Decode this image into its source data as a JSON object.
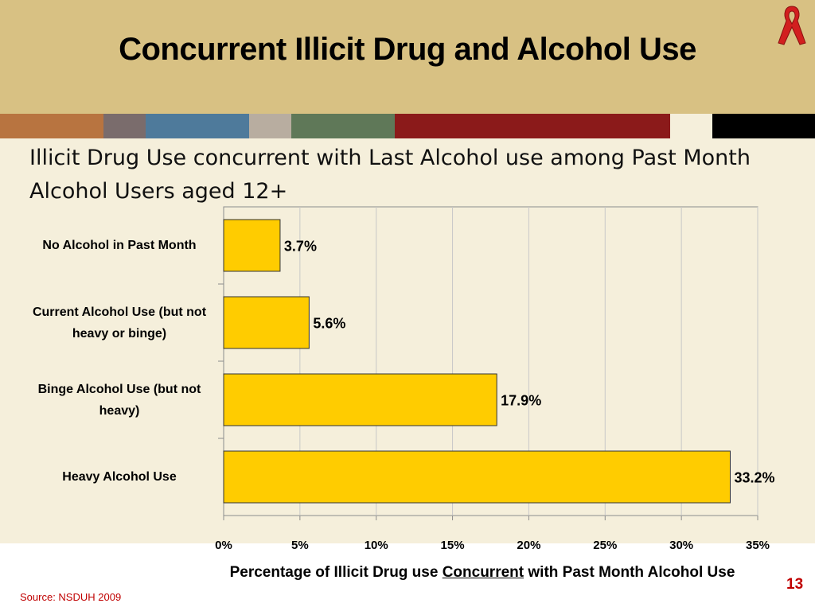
{
  "slide": {
    "title": "Concurrent Illicit Drug and Alcohol Use",
    "subtitle": "Illicit Drug Use concurrent with Last Alcohol use among Past Month Alcohol Users aged 12+",
    "source": "Source: NSDUH 2009",
    "page_number": "13",
    "icon": "red-ribbon-icon"
  },
  "colors": {
    "header_bg": "#d8c183",
    "slide_bg": "#f5efdb",
    "bar_fill": "#ffcc00",
    "accent_red": "#c00000",
    "band": [
      "#b87440",
      "#7a6c6c",
      "#4e7a9b",
      "#b8ada0",
      "#5f7858",
      "#8b1a1a",
      "#f5efdb",
      "#000000"
    ]
  },
  "chart_data": {
    "type": "bar",
    "orientation": "horizontal",
    "categories": [
      "No Alcohol in Past Month",
      "Current Alcohol Use (but not heavy or binge)",
      "Binge Alcohol Use (but not heavy)",
      "Heavy Alcohol Use"
    ],
    "values": [
      3.7,
      5.6,
      17.9,
      33.2
    ],
    "data_labels": [
      "3.7%",
      "5.6%",
      "17.9%",
      "33.2%"
    ],
    "xlabel_parts": [
      "Percentage of Illicit Drug use ",
      "Concurrent",
      " with Past Month Alcohol Use"
    ],
    "xlim": [
      0,
      35
    ],
    "xticks": [
      0,
      5,
      10,
      15,
      20,
      25,
      30,
      35
    ],
    "xtick_labels": [
      "0%",
      "5%",
      "10%",
      "15%",
      "20%",
      "25%",
      "30%",
      "35%"
    ],
    "grid": true,
    "legend": "none"
  }
}
